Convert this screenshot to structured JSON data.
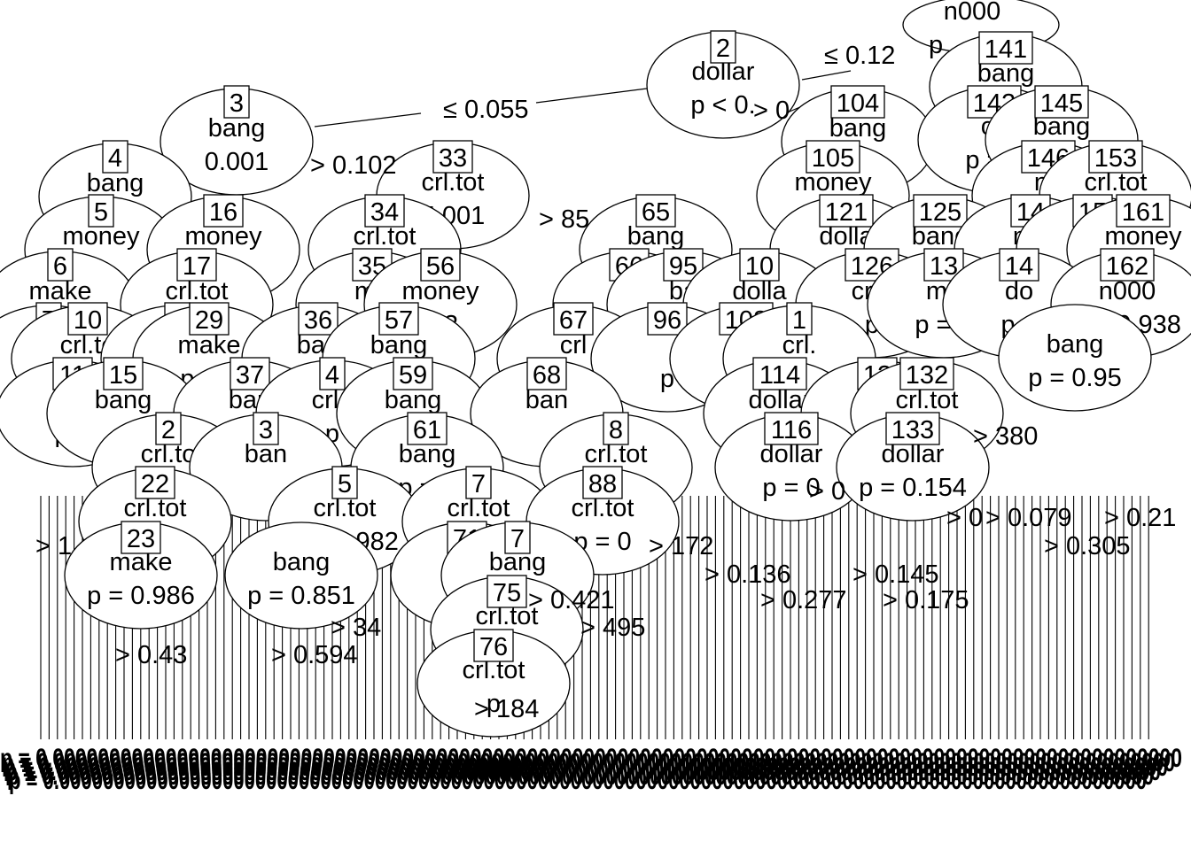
{
  "diagram": {
    "type": "conditional-inference-tree",
    "nodes": [
      {
        "id": "n000",
        "label": "n000",
        "var": "",
        "p": "p"
      },
      {
        "id": "141",
        "label": "141",
        "var": "bang",
        "p": ""
      },
      {
        "id": "2",
        "label": "2",
        "var": "dollar",
        "p": "p < 0."
      },
      {
        "id": "104",
        "label": "104",
        "var": "bang",
        "p": ""
      },
      {
        "id": "142",
        "label": "142",
        "var": "crl",
        "p": "p = 0"
      },
      {
        "id": "145",
        "label": "145",
        "var": "bang",
        "p": ""
      },
      {
        "id": "3",
        "label": "3",
        "var": "bang",
        "p": "0.001"
      },
      {
        "id": "105",
        "label": "105",
        "var": "money",
        "p": ""
      },
      {
        "id": "146",
        "label": "146",
        "var": "n0",
        "p": ""
      },
      {
        "id": "153",
        "label": "153",
        "var": "crl.tot",
        "p": ""
      },
      {
        "id": "4",
        "label": "4",
        "var": "bang",
        "p": "102"
      },
      {
        "id": "33",
        "label": "33",
        "var": "crl.tot",
        "p": "5.001"
      },
      {
        "id": "5",
        "label": "5",
        "var": "money",
        "p": ""
      },
      {
        "id": "16",
        "label": "16",
        "var": "money",
        "p": ""
      },
      {
        "id": "34",
        "label": "34",
        "var": "crl.tot",
        "p": ""
      },
      {
        "id": "65",
        "label": "65",
        "var": "bang",
        "p": ""
      },
      {
        "id": "121",
        "label": "121",
        "var": "dolla",
        "p": "p ="
      },
      {
        "id": "125",
        "label": "125",
        "var": "bang",
        "p": ""
      },
      {
        "id": "14x",
        "label": "14",
        "var": "mo",
        "p": ""
      },
      {
        "id": "15x",
        "label": "15",
        "var": "",
        "p": ""
      },
      {
        "id": "161",
        "label": "161",
        "var": "money",
        "p": ""
      },
      {
        "id": "6",
        "label": "6",
        "var": "make",
        "p": ""
      },
      {
        "id": "17",
        "label": "17",
        "var": "crl.tot",
        "p": ""
      },
      {
        "id": "35",
        "label": "35",
        "var": "mo",
        "p": ""
      },
      {
        "id": "56",
        "label": "56",
        "var": "money",
        "p": ".83"
      },
      {
        "id": "66",
        "label": "66",
        "var": "m",
        "p": ""
      },
      {
        "id": "95",
        "label": "95",
        "var": "ba",
        "p": ""
      },
      {
        "id": "10x",
        "label": "10",
        "var": "dolla",
        "p": ""
      },
      {
        "id": "126",
        "label": "126",
        "var": "crl.t",
        "p": "p"
      },
      {
        "id": "13x",
        "label": "13",
        "var": "mo",
        "p": "p = 0"
      },
      {
        "id": "14y",
        "label": "14",
        "var": "do",
        "p": "p ="
      },
      {
        "id": "162",
        "label": "162",
        "var": "n000",
        "p": "p = 0.938"
      },
      {
        "id": "7",
        "label": "7",
        "var": "",
        "p": ""
      },
      {
        "id": "10",
        "label": "10",
        "var": "crl.to",
        "p": ""
      },
      {
        "id": "1x",
        "label": "1",
        "var": "",
        "p": ""
      },
      {
        "id": "29",
        "label": "29",
        "var": "make",
        "p": "p = 0"
      },
      {
        "id": "36",
        "label": "36",
        "var": "ban",
        "p": ""
      },
      {
        "id": "57",
        "label": "57",
        "var": "bang",
        "p": ""
      },
      {
        "id": "67",
        "label": "67",
        "var": "crl",
        "p": ""
      },
      {
        "id": "96",
        "label": "96",
        "var": "",
        "p": "p"
      },
      {
        "id": "108",
        "label": "108",
        "var": "b",
        "p": ""
      },
      {
        "id": "1y",
        "label": "1",
        "var": "crl.",
        "p": ""
      },
      {
        "id": "bang95",
        "label": "",
        "var": "bang",
        "p": "p = 0.95"
      },
      {
        "id": "11",
        "label": "11",
        "var": "c",
        "p": "p = "
      },
      {
        "id": "15",
        "label": "15",
        "var": "bang",
        "p": ""
      },
      {
        "id": "37",
        "label": "37",
        "var": "ban",
        "p": ""
      },
      {
        "id": "4x",
        "label": "4",
        "var": "crl.t",
        "p": "p"
      },
      {
        "id": "59",
        "label": "59",
        "var": "bang",
        "p": ""
      },
      {
        "id": "68",
        "label": "68",
        "var": "ban",
        "p": ""
      },
      {
        "id": "114",
        "label": "114",
        "var": "dollar",
        "p": ""
      },
      {
        "id": "12x",
        "label": "12",
        "var": "",
        "p": "p"
      },
      {
        "id": "132",
        "label": "132",
        "var": "crl.tot",
        "p": ""
      },
      {
        "id": "2x",
        "label": "2",
        "var": "crl.to",
        "p": ""
      },
      {
        "id": "3x",
        "label": "3",
        "var": "ban",
        "p": ""
      },
      {
        "id": "61",
        "label": "61",
        "var": "bang",
        "p": "p = 0"
      },
      {
        "id": "8x",
        "label": "8",
        "var": "crl.tot",
        "p": ""
      },
      {
        "id": "116",
        "label": "116",
        "var": "dollar",
        "p": "p = 0"
      },
      {
        "id": "133",
        "label": "133",
        "var": "dollar",
        "p": "p = 0.154"
      },
      {
        "id": "22",
        "label": "22",
        "var": "crl.tot",
        "p": ""
      },
      {
        "id": "5x",
        "label": "5",
        "var": "crl.tot",
        "p": "p = 0.982"
      },
      {
        "id": "7x",
        "label": "7",
        "var": "crl.tot",
        "p": ""
      },
      {
        "id": "88",
        "label": "88",
        "var": "crl.tot",
        "p": "p = 0"
      },
      {
        "id": "23",
        "label": "23",
        "var": "make",
        "p": "p = 0.986"
      },
      {
        "id": "bang851",
        "label": "",
        "var": "bang",
        "p": "p = 0.851"
      },
      {
        "id": "71",
        "label": "71",
        "var": "b",
        "p": "p"
      },
      {
        "id": "7y",
        "label": "7",
        "var": "bang",
        "p": ""
      },
      {
        "id": "75",
        "label": "75",
        "var": "crl.tot",
        "p": ""
      },
      {
        "id": "76",
        "label": "76",
        "var": "crl.tot",
        "p": "p"
      }
    ],
    "edge_labels": [
      "≤ 0.12",
      "≤ 0.055",
      "> 0",
      "> 0.102",
      "> 85",
      "> 380",
      "> 0.079",
      "> 0.21",
      "> 0.305",
      "> 172",
      "> 0.136",
      "> 0.145",
      "> 0.277",
      "> 0.175",
      "> 0.421",
      "> 495",
      "> 34",
      "> 0.43",
      "> 0.594",
      "> 184",
      "> 1",
      "> 0",
      "> 0"
    ],
    "terminal_strip": "p = 0.0000000000000000000000000000000000000000000000000000000000000000000000000000000000000000000000000000"
  }
}
